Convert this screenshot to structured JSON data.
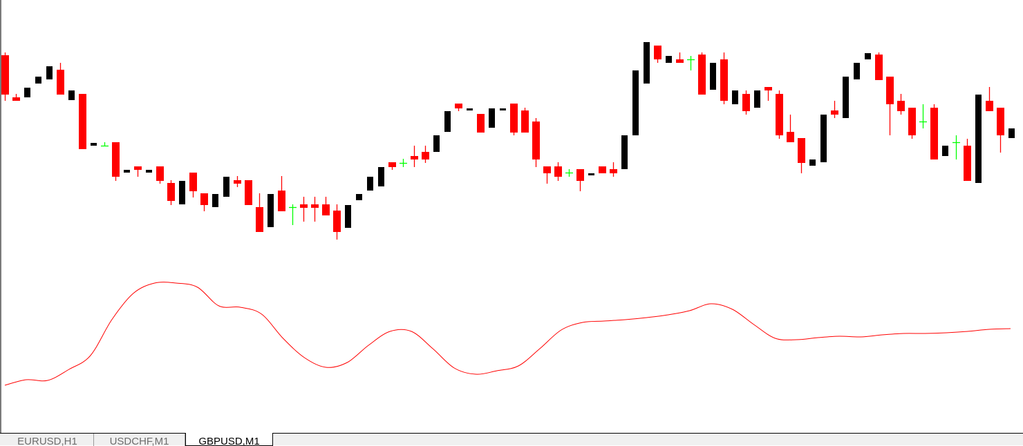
{
  "colors": {
    "bull": "#000000",
    "bear": "#ff0000",
    "doji": "#00ff00",
    "indicator": "#ff0000",
    "background": "#ffffff"
  },
  "tabs": [
    {
      "label": "EURUSD,H1",
      "active": false
    },
    {
      "label": "USDCHF,M1",
      "active": false
    },
    {
      "label": "GBPUSD,M1",
      "active": true
    }
  ],
  "chart_data": {
    "type": "candlestick",
    "symbol": "GBPUSD,M1",
    "ohlc_columns": [
      "open",
      "high",
      "low",
      "close"
    ],
    "candles": [
      [
        320,
        324,
        254,
        263
      ],
      [
        259,
        264,
        254,
        254
      ],
      [
        259,
        273,
        259,
        273
      ],
      [
        279,
        289,
        279,
        289
      ],
      [
        285,
        304,
        285,
        304
      ],
      [
        299,
        309,
        263,
        263
      ],
      [
        255,
        269,
        255,
        269
      ],
      [
        264,
        264,
        184,
        184
      ],
      [
        189,
        193,
        189,
        193
      ],
      [
        189,
        194,
        189,
        189
      ],
      [
        194,
        194,
        138,
        144
      ],
      [
        150,
        154,
        150,
        154
      ],
      [
        159,
        159,
        144,
        154
      ],
      [
        150,
        154,
        150,
        154
      ],
      [
        159,
        159,
        134,
        138
      ],
      [
        135,
        139,
        103,
        109
      ],
      [
        104,
        138,
        104,
        138
      ],
      [
        150,
        150,
        114,
        123
      ],
      [
        120,
        120,
        94,
        103
      ],
      [
        100,
        119,
        100,
        119
      ],
      [
        115,
        144,
        115,
        144
      ],
      [
        139,
        145,
        129,
        134
      ],
      [
        139,
        139,
        103,
        103
      ],
      [
        100,
        120,
        64,
        64
      ],
      [
        71,
        119,
        71,
        119
      ],
      [
        124,
        145,
        94,
        94
      ],
      [
        100,
        104,
        74,
        100
      ],
      [
        104,
        115,
        79,
        99
      ],
      [
        104,
        115,
        79,
        99
      ],
      [
        104,
        115,
        88,
        88
      ],
      [
        95,
        104,
        53,
        64
      ],
      [
        70,
        103,
        70,
        103
      ],
      [
        110,
        119,
        110,
        119
      ],
      [
        124,
        144,
        124,
        144
      ],
      [
        130,
        158,
        130,
        158
      ],
      [
        165,
        165,
        154,
        158
      ],
      [
        164,
        170,
        158,
        164
      ],
      [
        174,
        189,
        158,
        169
      ],
      [
        180,
        189,
        164,
        169
      ],
      [
        180,
        204,
        180,
        204
      ],
      [
        209,
        239,
        209,
        239
      ],
      [
        250,
        250,
        239,
        243
      ],
      [
        240,
        243,
        240,
        243
      ],
      [
        235,
        235,
        208,
        208
      ],
      [
        215,
        243,
        215,
        243
      ],
      [
        240,
        243,
        240,
        243
      ],
      [
        250,
        250,
        204,
        208
      ],
      [
        240,
        244,
        208,
        208
      ],
      [
        224,
        229,
        158,
        169
      ],
      [
        159,
        159,
        134,
        149
      ],
      [
        159,
        165,
        138,
        144
      ],
      [
        150,
        155,
        144,
        150
      ],
      [
        155,
        155,
        123,
        138
      ],
      [
        146,
        149,
        146,
        149
      ],
      [
        159,
        159,
        149,
        149
      ],
      [
        155,
        165,
        144,
        149
      ],
      [
        155,
        204,
        155,
        204
      ],
      [
        204,
        298,
        204,
        298
      ],
      [
        279,
        339,
        279,
        339
      ],
      [
        334,
        334,
        309,
        314
      ],
      [
        309,
        319,
        309,
        319
      ],
      [
        314,
        324,
        309,
        309
      ],
      [
        314,
        319,
        298,
        314
      ],
      [
        321,
        324,
        263,
        263
      ],
      [
        270,
        309,
        270,
        309
      ],
      [
        314,
        324,
        249,
        254
      ],
      [
        249,
        269,
        249,
        269
      ],
      [
        264,
        269,
        234,
        239
      ],
      [
        244,
        269,
        244,
        269
      ],
      [
        274,
        274,
        254,
        269
      ],
      [
        264,
        269,
        199,
        204
      ],
      [
        209,
        234,
        194,
        194
      ],
      [
        200,
        200,
        149,
        164
      ],
      [
        160,
        169,
        160,
        169
      ],
      [
        165,
        234,
        165,
        234
      ],
      [
        240,
        254,
        229,
        234
      ],
      [
        229,
        289,
        229,
        289
      ],
      [
        285,
        309,
        285,
        309
      ],
      [
        314,
        323,
        314,
        323
      ],
      [
        321,
        324,
        284,
        284
      ],
      [
        289,
        289,
        204,
        249
      ],
      [
        254,
        264,
        234,
        239
      ],
      [
        244,
        244,
        199,
        204
      ],
      [
        224,
        249,
        214,
        224
      ],
      [
        244,
        249,
        169,
        169
      ],
      [
        174,
        189,
        174,
        189
      ],
      [
        194,
        204,
        169,
        194
      ],
      [
        189,
        199,
        138,
        138
      ],
      [
        135,
        263,
        135,
        263
      ],
      [
        254,
        274,
        239,
        239
      ],
      [
        244,
        244,
        179,
        204
      ],
      [
        200,
        214,
        200,
        214
      ]
    ],
    "price_range": [
      40,
      350
    ],
    "indicator": {
      "color": "#ff0000",
      "values": [
        42,
        50,
        49,
        65,
        85,
        137,
        175,
        190,
        190,
        184,
        157,
        155,
        145,
        110,
        82,
        68,
        75,
        100,
        120,
        120,
        95,
        67,
        58,
        63,
        70,
        95,
        122,
        133,
        135,
        137,
        140,
        144,
        150,
        160,
        152,
        130,
        110,
        108,
        111,
        113,
        112,
        115,
        117,
        117,
        118,
        120,
        123,
        124
      ],
      "range": [
        0,
        250
      ]
    },
    "grid": false,
    "axes_visible": false
  }
}
